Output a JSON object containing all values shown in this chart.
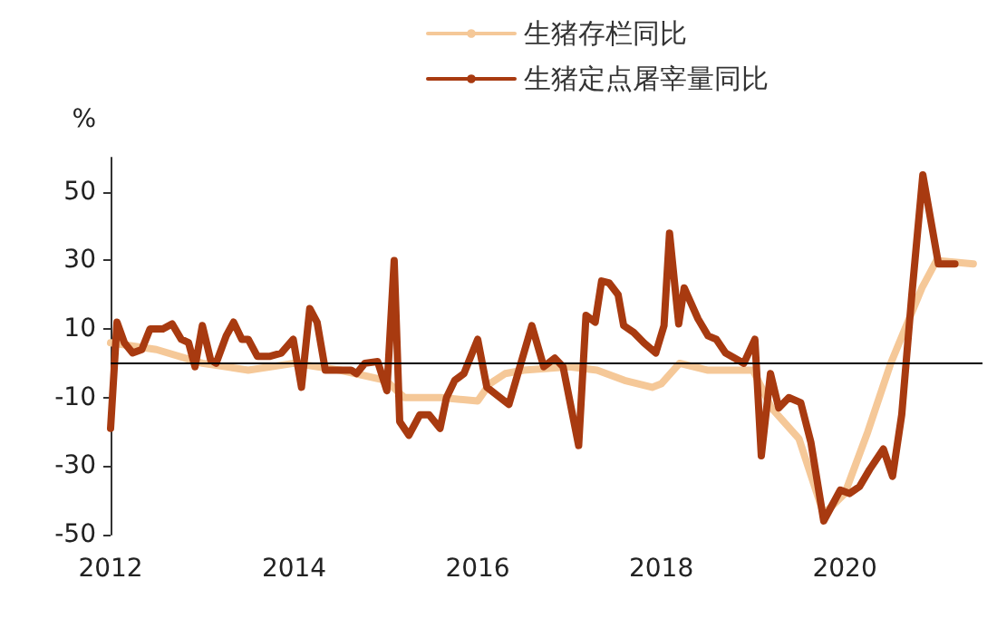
{
  "chart_data": {
    "type": "line",
    "ylabel": "%",
    "xlim": [
      2012,
      2021.5
    ],
    "xticks": [
      2012,
      2014,
      2016,
      2018,
      2020
    ],
    "ylim": [
      -50,
      60
    ],
    "yticks": [
      -50,
      -30,
      -10,
      10,
      30,
      50
    ],
    "grid": false,
    "legend": "top",
    "marker": "none",
    "line_style": "solid",
    "ref_lines": [
      {
        "axis": "y",
        "value": 0,
        "color": "#000000"
      }
    ],
    "series": [
      {
        "name": "生猪存栏同比",
        "color": "#f5c898",
        "x": [
          2012.0,
          2012.5,
          2013.0,
          2013.5,
          2014.0,
          2014.5,
          2015.0,
          2015.2,
          2015.6,
          2016.0,
          2016.13,
          2016.3,
          2016.5,
          2017.0,
          2017.3,
          2017.6,
          2017.9,
          2018.0,
          2018.2,
          2018.5,
          2019.0,
          2019.2,
          2019.5,
          2019.77,
          2020.0,
          2020.25,
          2020.5,
          2020.84,
          2021.0,
          2021.4
        ],
        "values": [
          6,
          4,
          0,
          -2,
          0,
          -2,
          -5,
          -10,
          -10,
          -11,
          -6,
          -3,
          -2,
          -1,
          -2,
          -5,
          -7,
          -6,
          0,
          -2,
          -2,
          -13,
          -22,
          -44,
          -38,
          -20,
          0,
          22,
          30,
          29
        ]
      },
      {
        "name": "生猪定点屠宰量同比",
        "color": "#a83a10",
        "x": [
          2012.0,
          2012.07,
          2012.15,
          2012.24,
          2012.34,
          2012.43,
          2012.57,
          2012.67,
          2012.77,
          2012.85,
          2012.92,
          2013.0,
          2013.09,
          2013.15,
          2013.26,
          2013.34,
          2013.43,
          2013.5,
          2013.6,
          2013.73,
          2013.86,
          2013.99,
          2014.08,
          2014.17,
          2014.25,
          2014.34,
          2014.48,
          2014.62,
          2014.68,
          2014.77,
          2014.91,
          2015.01,
          2015.09,
          2015.15,
          2015.25,
          2015.37,
          2015.47,
          2015.59,
          2015.66,
          2015.75,
          2015.85,
          2016.0,
          2016.1,
          2016.34,
          2016.59,
          2016.72,
          2016.84,
          2016.93,
          2017.1,
          2017.18,
          2017.28,
          2017.35,
          2017.43,
          2017.53,
          2017.59,
          2017.7,
          2017.81,
          2017.94,
          2018.03,
          2018.09,
          2018.19,
          2018.25,
          2018.4,
          2018.51,
          2018.6,
          2018.7,
          2018.9,
          2019.02,
          2019.09,
          2019.19,
          2019.28,
          2019.39,
          2019.52,
          2019.63,
          2019.77,
          2019.85,
          2019.95,
          2020.05,
          2020.16,
          2020.27,
          2020.42,
          2020.52,
          2020.62,
          2020.73,
          2020.85,
          2021.02,
          2021.2
        ],
        "values": [
          -19,
          12,
          6,
          3,
          4,
          10,
          10,
          11.5,
          7,
          6,
          -1,
          11,
          1,
          0,
          8,
          12,
          7,
          7,
          2,
          2,
          3,
          7,
          -7,
          16,
          12,
          -2,
          -2,
          -2,
          -3,
          0,
          0.5,
          -8,
          30,
          -17,
          -21,
          -15,
          -15,
          -19,
          -10,
          -5,
          -3,
          7,
          -7,
          -12,
          11,
          -1,
          1.5,
          -1,
          -24,
          14,
          12,
          24,
          23.5,
          20,
          11,
          9,
          6,
          3,
          11,
          38,
          11.5,
          22,
          13,
          8,
          7,
          3,
          0,
          7,
          -27,
          -3,
          -13,
          -10,
          -11.5,
          -23,
          -46,
          -42,
          -37,
          -38,
          -36,
          -31,
          -25,
          -33,
          -15,
          20,
          55,
          29,
          29
        ]
      }
    ]
  }
}
